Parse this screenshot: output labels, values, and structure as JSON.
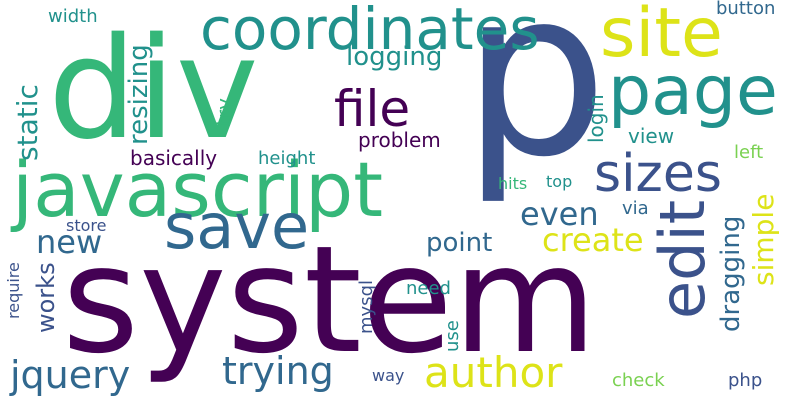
{
  "cloud": {
    "words": [
      {
        "text": "system",
        "color": "#440154",
        "vertical": false
      },
      {
        "text": "p",
        "color": "#3b528b",
        "vertical": false
      },
      {
        "text": "div",
        "color": "#35b779",
        "vertical": false
      },
      {
        "text": "javascript",
        "color": "#35b779",
        "vertical": false
      },
      {
        "text": "coordinates",
        "color": "#21918c",
        "vertical": false
      },
      {
        "text": "site",
        "color": "#dde318",
        "vertical": false
      },
      {
        "text": "page",
        "color": "#21918c",
        "vertical": false
      },
      {
        "text": "save",
        "color": "#31688e",
        "vertical": false
      },
      {
        "text": "edit",
        "color": "#3b528b",
        "vertical": true
      },
      {
        "text": "author",
        "color": "#dde318",
        "vertical": false
      },
      {
        "text": "sizes",
        "color": "#3b528b",
        "vertical": false
      },
      {
        "text": "file",
        "color": "#440154",
        "vertical": false
      },
      {
        "text": "jquery",
        "color": "#31688e",
        "vertical": false
      },
      {
        "text": "trying",
        "color": "#31688e",
        "vertical": false
      },
      {
        "text": "create",
        "color": "#dde318",
        "vertical": false
      },
      {
        "text": "even",
        "color": "#31688e",
        "vertical": false
      },
      {
        "text": "new",
        "color": "#31688e",
        "vertical": false
      },
      {
        "text": "static",
        "color": "#21918c",
        "vertical": true
      },
      {
        "text": "simple",
        "color": "#dde318",
        "vertical": true
      },
      {
        "text": "dragging",
        "color": "#31688e",
        "vertical": true
      },
      {
        "text": "resizing",
        "color": "#21918c",
        "vertical": true
      },
      {
        "text": "logging",
        "color": "#21918c",
        "vertical": false
      },
      {
        "text": "point",
        "color": "#31688e",
        "vertical": false
      },
      {
        "text": "works",
        "color": "#3b528b",
        "vertical": true
      },
      {
        "text": "problem",
        "color": "#440154",
        "vertical": false
      },
      {
        "text": "basically",
        "color": "#440154",
        "vertical": false
      },
      {
        "text": "login",
        "color": "#21918c",
        "vertical": true
      },
      {
        "text": "mysql",
        "color": "#3b528b",
        "vertical": true
      },
      {
        "text": "view",
        "color": "#21918c",
        "vertical": false
      },
      {
        "text": "button",
        "color": "#31688e",
        "vertical": false
      },
      {
        "text": "width",
        "color": "#21918c",
        "vertical": false
      },
      {
        "text": "height",
        "color": "#21918c",
        "vertical": false
      },
      {
        "text": "try",
        "color": "#35b779",
        "vertical": true
      },
      {
        "text": "left",
        "color": "#7ad151",
        "vertical": false
      },
      {
        "text": "via",
        "color": "#31688e",
        "vertical": false
      },
      {
        "text": "need",
        "color": "#21918c",
        "vertical": false
      },
      {
        "text": "use",
        "color": "#21918c",
        "vertical": true
      },
      {
        "text": "require",
        "color": "#3b528b",
        "vertical": true
      },
      {
        "text": "store",
        "color": "#3b528b",
        "vertical": false
      },
      {
        "text": "hits",
        "color": "#35b779",
        "vertical": false
      },
      {
        "text": "top",
        "color": "#21918c",
        "vertical": false
      },
      {
        "text": "way",
        "color": "#3b528b",
        "vertical": false
      },
      {
        "text": "check",
        "color": "#7ad151",
        "vertical": false
      },
      {
        "text": "php",
        "color": "#3b528b",
        "vertical": false
      }
    ]
  }
}
